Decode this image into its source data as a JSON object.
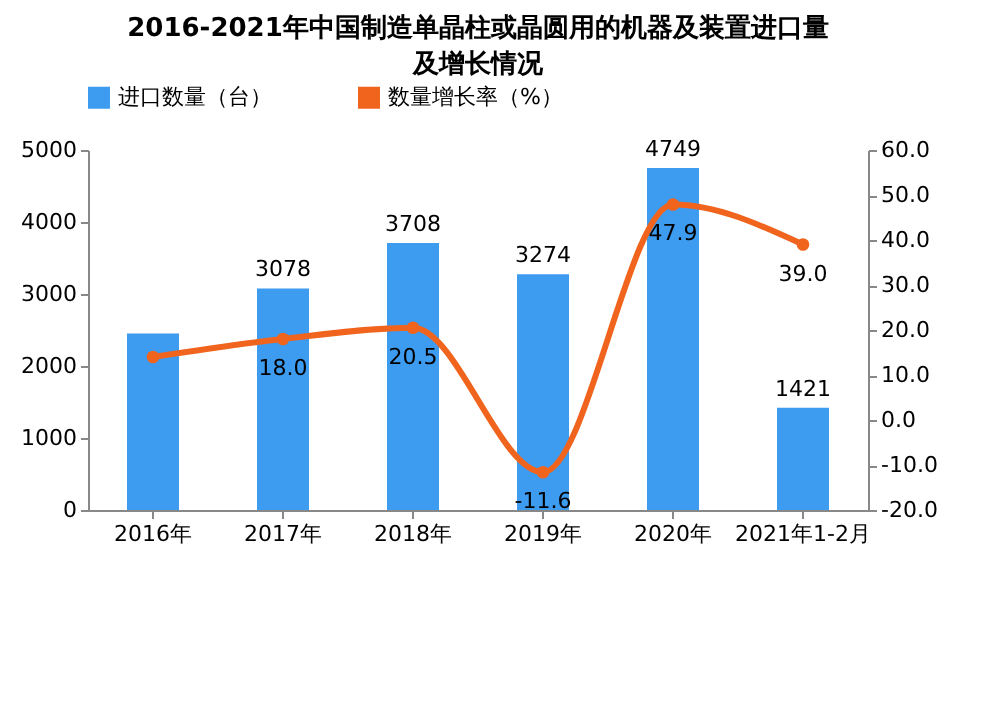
{
  "chart_data": {
    "type": "bar",
    "title": "2016-2021年中国制造单晶柱或晶圆用的机器及装置进口量及增长情况",
    "categories": [
      "2016年",
      "2017年",
      "2018年",
      "2019年",
      "2020年",
      "2021年1-2月"
    ],
    "series": [
      {
        "name": "进口数量（台）",
        "color": "#3d9cf0",
        "values": [
          2450,
          3078,
          3708,
          3274,
          4749,
          1421
        ],
        "value_labels": [
          null,
          "3078",
          "3708",
          "3274",
          "4749",
          "1421"
        ]
      },
      {
        "name": "数量增长率（%）",
        "type": "line",
        "axis": "y2",
        "color": "#f0641e",
        "values": [
          14,
          18.0,
          20.5,
          -11.6,
          47.9,
          39.0
        ],
        "value_labels": [
          null,
          "18.0",
          "20.5",
          "-11.6",
          "47.9",
          "39.0"
        ]
      }
    ],
    "ylim": [
      0,
      5000
    ],
    "yticks": [
      0,
      1000,
      2000,
      3000,
      4000,
      5000
    ],
    "y2lim": [
      -20,
      60
    ],
    "y2ticks": [
      {
        "value": -20,
        "label": "-20.0"
      },
      {
        "value": -10,
        "label": "-10.0"
      },
      {
        "value": 0,
        "label": "0.0"
      },
      {
        "value": 10,
        "label": "10.0"
      },
      {
        "value": 20,
        "label": "20.0"
      },
      {
        "value": 30,
        "label": "30.0"
      },
      {
        "value": 40,
        "label": "40.0"
      },
      {
        "value": 50,
        "label": "50.0"
      },
      {
        "value": 60,
        "label": "60.0"
      }
    ],
    "legend": "top",
    "marker": "circle",
    "grid": false
  }
}
